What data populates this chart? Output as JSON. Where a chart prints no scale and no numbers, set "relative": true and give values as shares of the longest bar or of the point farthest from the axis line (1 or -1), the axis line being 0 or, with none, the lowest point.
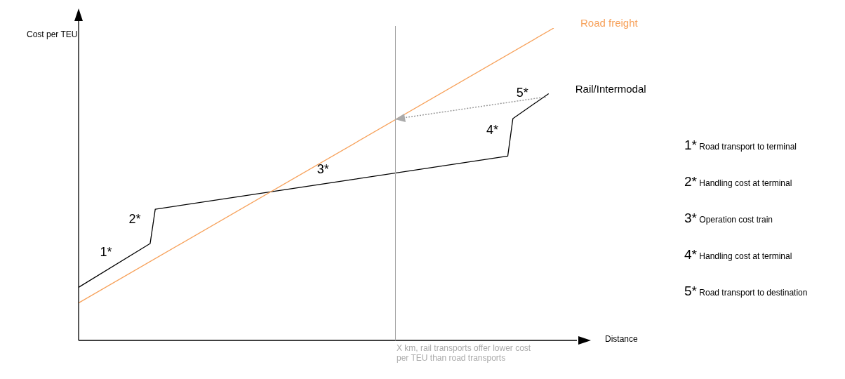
{
  "chart_data": {
    "type": "line",
    "relative": true,
    "ylabel": "Cost per TEU",
    "tick_labels": false,
    "grid": false,
    "legend": false,
    "marker": "none",
    "line_style": "solid",
    "categories": [
      null,
      null,
      null,
      null,
      null,
      null,
      null,
      null,
      null,
      null,
      null,
      null,
      null,
      null,
      null,
      null,
      null,
      null,
      null,
      null,
      null,
      null,
      null,
      null,
      null,
      null,
      null,
      null,
      null,
      null,
      null,
      null,
      null,
      null,
      null,
      null,
      null,
      null,
      null,
      null,
      null,
      null,
      null,
      null,
      null,
      null,
      null,
      null,
      null,
      null,
      null,
      null,
      null,
      null,
      null,
      null,
      null,
      null,
      null,
      null,
      null,
      null,
      null,
      null,
      null,
      null,
      null,
      null,
      null,
      null,
      null,
      null,
      null,
      null,
      null,
      null,
      null,
      null,
      null,
      null,
      null,
      null,
      null,
      null,
      null,
      null,
      null,
      null,
      null,
      null,
      null,
      null,
      null,
      null
    ],
    "series": [
      {
        "name": "Road freight",
        "color": "#f7a15a",
        "values": [
          0.12,
          null,
          null,
          null,
          null,
          null,
          null,
          null,
          null,
          null,
          null,
          null,
          null,
          null,
          null,
          null,
          null,
          null,
          null,
          null,
          null,
          null,
          null,
          null,
          null,
          null,
          null,
          null,
          null,
          null,
          null,
          null,
          null,
          null,
          null,
          null,
          null,
          null,
          null,
          null,
          null,
          null,
          null,
          null,
          null,
          null,
          null,
          null,
          null,
          null,
          null,
          null,
          null,
          null,
          null,
          null,
          null,
          null,
          null,
          null,
          null,
          null,
          null,
          null,
          null,
          null,
          null,
          null,
          null,
          null,
          null,
          null,
          null,
          null,
          null,
          null,
          null,
          null,
          null,
          null,
          null,
          null,
          null,
          null,
          null,
          null,
          null,
          null,
          null,
          null,
          null,
          null,
          null,
          1
        ]
      },
      {
        "name": "Rail/Intermodal",
        "color": "#000000",
        "values": [
          0.17,
          null,
          null,
          null,
          null,
          null,
          null,
          null,
          null,
          null,
          null,
          null,
          null,
          null,
          0.31,
          0.42,
          null,
          null,
          null,
          null,
          null,
          null,
          null,
          null,
          null,
          null,
          null,
          null,
          null,
          null,
          null,
          null,
          null,
          null,
          null,
          null,
          null,
          null,
          null,
          null,
          null,
          null,
          null,
          null,
          null,
          null,
          null,
          null,
          null,
          null,
          null,
          null,
          null,
          null,
          null,
          null,
          null,
          null,
          null,
          null,
          null,
          null,
          null,
          null,
          null,
          null,
          null,
          null,
          null,
          null,
          null,
          null,
          null,
          null,
          null,
          null,
          null,
          null,
          null,
          null,
          null,
          null,
          null,
          null,
          0.59,
          0.71,
          null,
          null,
          null,
          null,
          null,
          null,
          0.79,
          null
        ]
      }
    ],
    "annotations": [
      "1*",
      "2*",
      "3*",
      "4*",
      "5*",
      "1* Road transport to terminal",
      "2* Handling cost at terminal",
      "3* Operation cost train",
      "4* Handling cost at terminal",
      "5* Road transport to destination",
      "X km, rail transports offer lower cost per TEU than road transports",
      "Distance"
    ]
  }
}
